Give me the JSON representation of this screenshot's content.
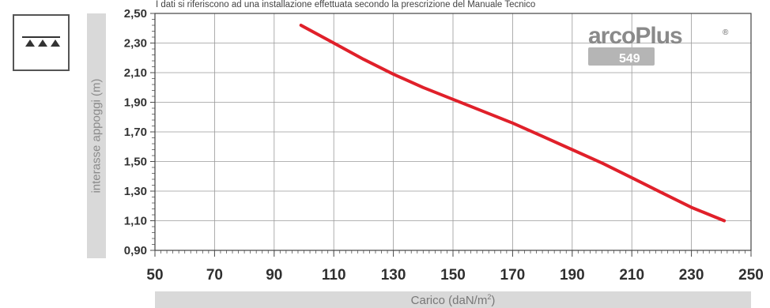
{
  "note": "I dati si riferiscono ad una installazione effettuata secondo la prescrizione del Manuale Tecnico",
  "icon": "distributed-load-icon",
  "logo": {
    "brand": "arcoPlus",
    "model": "549",
    "mark": "®"
  },
  "chart_data": {
    "type": "line",
    "title": "",
    "xlabel": "Carico (daN/m",
    "xlabel_sup": "2",
    "xlabel_close": ")",
    "ylabel": "interasse appoggi (m)",
    "xlim": [
      50,
      250
    ],
    "ylim": [
      0.9,
      2.5
    ],
    "xticks": [
      "50",
      "70",
      "90",
      "110",
      "130",
      "150",
      "170",
      "190",
      "210",
      "230",
      "250"
    ],
    "yticks": [
      "0,90",
      "1,10",
      "1,30",
      "1,50",
      "1,70",
      "1,90",
      "2,10",
      "2,30",
      "2,50"
    ],
    "grid": true,
    "series": [
      {
        "color": "#e0202a",
        "x": [
          99,
          110,
          120,
          130,
          140,
          150,
          160,
          170,
          180,
          190,
          200,
          210,
          220,
          230,
          241
        ],
        "y": [
          2.42,
          2.3,
          2.19,
          2.09,
          2.0,
          1.92,
          1.84,
          1.76,
          1.67,
          1.58,
          1.49,
          1.39,
          1.29,
          1.19,
          1.1
        ]
      }
    ]
  }
}
